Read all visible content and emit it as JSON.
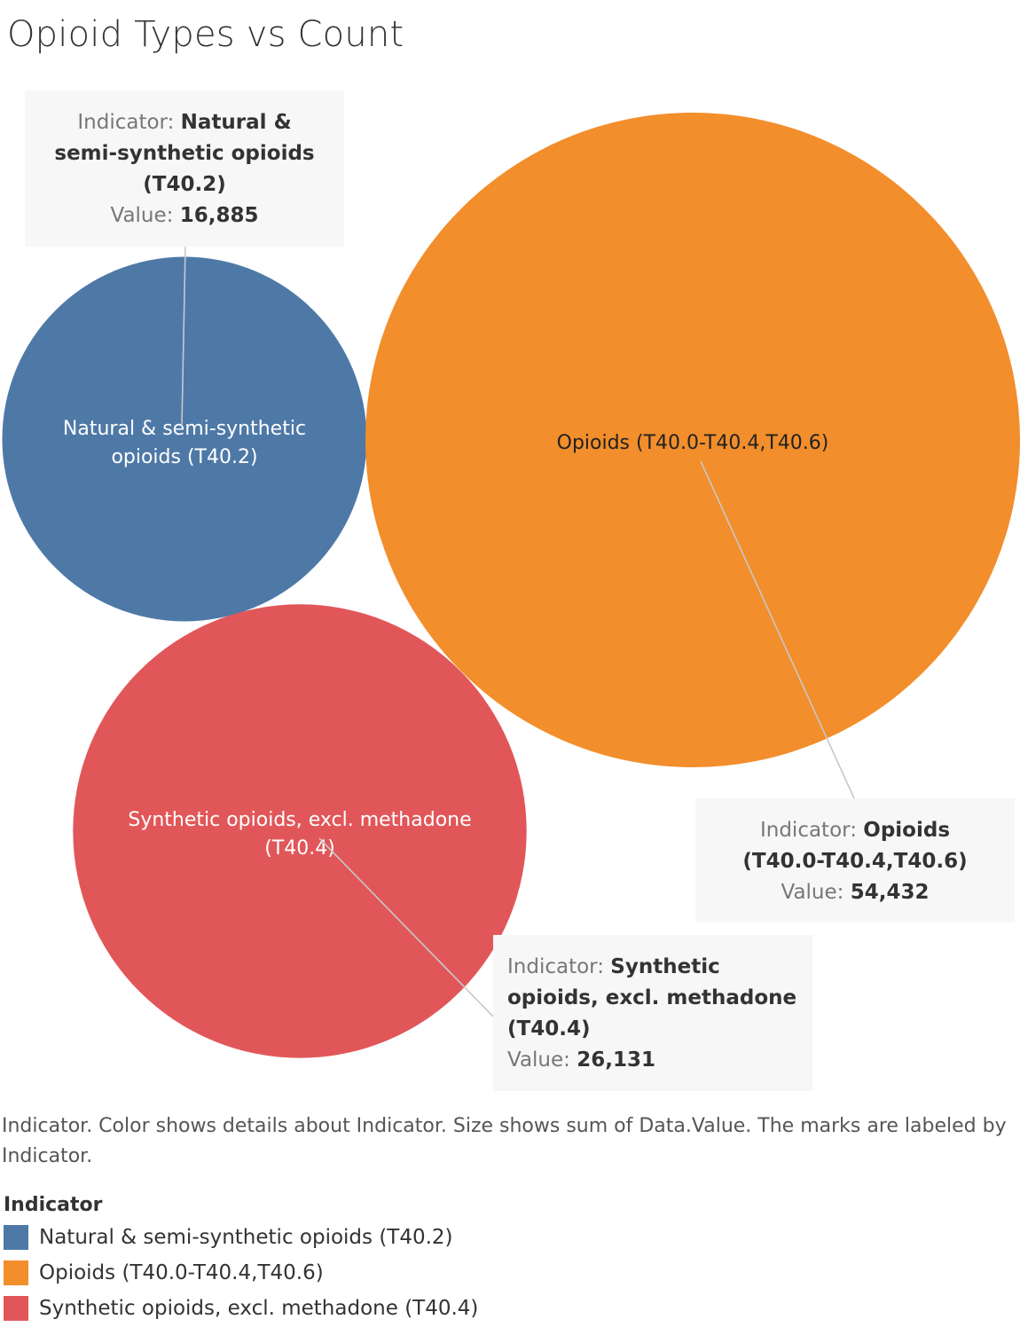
{
  "title": "Opioid Types vs Count",
  "caption": "Indicator.  Color shows details about Indicator.  Size shows sum of Data.Value.  The marks are labeled by Indicator.",
  "legend": {
    "title": "Indicator",
    "items": [
      {
        "label": "Natural & semi-synthetic opioids (T40.2)",
        "color": "#4e79a7"
      },
      {
        "label": "Opioids (T40.0-T40.4,T40.6)",
        "color": "#f28e2b"
      },
      {
        "label": "Synthetic opioids, excl. methadone (T40.4)",
        "color": "#e15759"
      }
    ]
  },
  "chart_data": {
    "type": "bubble",
    "title": "Opioid Types vs Count",
    "size_field": "Data.Value",
    "color_field": "Indicator",
    "series": [
      {
        "name": "Natural & semi-synthetic opioids (T40.2)",
        "value": 16885,
        "color": "#4e79a7",
        "label_lines": [
          "Natural & semi-synthetic",
          "opioids (T40.2)"
        ],
        "annotation": {
          "indicator_prefix": "Indicator: ",
          "indicator_lines": [
            "Natural &",
            "semi-synthetic opioids",
            "(T40.2)"
          ],
          "value_prefix": "Value: ",
          "value_text": "16,885"
        }
      },
      {
        "name": "Opioids (T40.0-T40.4,T40.6)",
        "value": 54432,
        "color": "#f28e2b",
        "label_lines": [
          "Opioids (T40.0-T40.4,T40.6)"
        ],
        "annotation": {
          "indicator_prefix": "Indicator: ",
          "indicator_lines": [
            "Opioids",
            "(T40.0-T40.4,T40.6)"
          ],
          "value_prefix": "Value: ",
          "value_text": "54,432"
        }
      },
      {
        "name": "Synthetic opioids, excl. methadone (T40.4)",
        "value": 26131,
        "color": "#e15759",
        "label_lines": [
          "Synthetic opioids, excl. methadone",
          "(T40.4)"
        ],
        "annotation": {
          "indicator_prefix": "Indicator: ",
          "indicator_lines": [
            "Synthetic",
            "opioids, excl. methadone",
            "(T40.4)"
          ],
          "value_prefix": "Value: ",
          "value_text": "26,131"
        }
      }
    ]
  }
}
